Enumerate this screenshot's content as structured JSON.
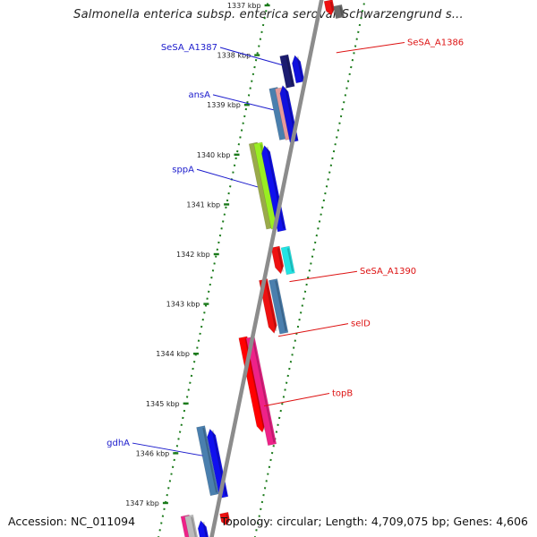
{
  "title": "Salmonella enterica subsp. enterica serovar Schwarzengrund s...",
  "footer": {
    "accession": "Accession: NC_011094",
    "summary": "Topology: circular; Length: 4,709,075 bp; Genes: 4,606"
  },
  "colors": {
    "backbone": "#8c8c8c",
    "tick": "#1a7a1a",
    "forward_label": "#1a1acc",
    "reverse_label": "#dd1111"
  },
  "ticks": [
    "1337 kbp",
    "1338 kbp",
    "1339 kbp",
    "1340 kbp",
    "1341 kbp",
    "1342 kbp",
    "1343 kbp",
    "1344 kbp",
    "1345 kbp",
    "1346 kbp",
    "1347 kbp"
  ],
  "labels": [
    {
      "text": "SeSA_A1387",
      "strand": "forward"
    },
    {
      "text": "ansA",
      "strand": "forward"
    },
    {
      "text": "sppA",
      "strand": "forward"
    },
    {
      "text": "gdhA",
      "strand": "forward"
    },
    {
      "text": "SeSA_A1386",
      "strand": "reverse"
    },
    {
      "text": "SeSA_A1390",
      "strand": "reverse"
    },
    {
      "text": "selD",
      "strand": "reverse"
    },
    {
      "text": "topB",
      "strand": "reverse"
    }
  ],
  "features": [
    {
      "lane": -2,
      "start": 1338.0,
      "end": 1338.65,
      "color": "#1c1c70"
    },
    {
      "lane": -1,
      "start": 1338.0,
      "end": 1338.55,
      "color": "#1010dd",
      "arrow": "up"
    },
    {
      "lane": -2,
      "start": 1338.65,
      "end": 1339.7,
      "color": "#4a7fae"
    },
    {
      "lane": -1.4,
      "start": 1338.65,
      "end": 1339.7,
      "color": "#e69a9a"
    },
    {
      "lane": -1,
      "start": 1338.6,
      "end": 1339.75,
      "color": "#1010dd",
      "arrow": "up"
    },
    {
      "lane": -2.2,
      "start": 1339.75,
      "end": 1341.5,
      "color": "#9aaa4a"
    },
    {
      "lane": -1.7,
      "start": 1339.75,
      "end": 1341.5,
      "color": "#99ee22"
    },
    {
      "lane": -1,
      "start": 1339.8,
      "end": 1341.55,
      "color": "#1010ee",
      "arrow": "up"
    },
    {
      "lane": 1,
      "start": 1336.9,
      "end": 1337.2,
      "color": "#ee1111",
      "arrow": "down"
    },
    {
      "lane": 2,
      "start": 1337.0,
      "end": 1337.25,
      "color": "#6a6a6a"
    },
    {
      "lane": 1,
      "start": 1341.85,
      "end": 1342.4,
      "color": "#ee1111",
      "arrow": "down"
    },
    {
      "lane": 2,
      "start": 1341.85,
      "end": 1342.4,
      "color": "#22e3e3"
    },
    {
      "lane": 1,
      "start": 1342.5,
      "end": 1343.6,
      "color": "#ee1111",
      "arrow": "down"
    },
    {
      "lane": 2,
      "start": 1342.5,
      "end": 1343.6,
      "color": "#4a7fae"
    },
    {
      "lane": 1,
      "start": 1343.65,
      "end": 1345.6,
      "color": "#ff0000",
      "arrow": "down"
    },
    {
      "lane": 2,
      "start": 1343.65,
      "end": 1345.85,
      "color": "#ee2288"
    },
    {
      "lane": -2,
      "start": 1345.45,
      "end": 1346.85,
      "color": "#4a7fae"
    },
    {
      "lane": -1,
      "start": 1345.5,
      "end": 1346.9,
      "color": "#1010ee",
      "arrow": "up"
    },
    {
      "lane": -2.6,
      "start": 1347.25,
      "end": 1347.8,
      "color": "#ee2288"
    },
    {
      "lane": -2.2,
      "start": 1347.25,
      "end": 1347.8,
      "color": "#bbbbbb"
    },
    {
      "lane": -1,
      "start": 1347.35,
      "end": 1347.8,
      "color": "#1010ee",
      "arrow": "up"
    },
    {
      "lane": 1,
      "start": 1347.2,
      "end": 1347.45,
      "color": "#ee1111",
      "arrow": "down"
    }
  ]
}
